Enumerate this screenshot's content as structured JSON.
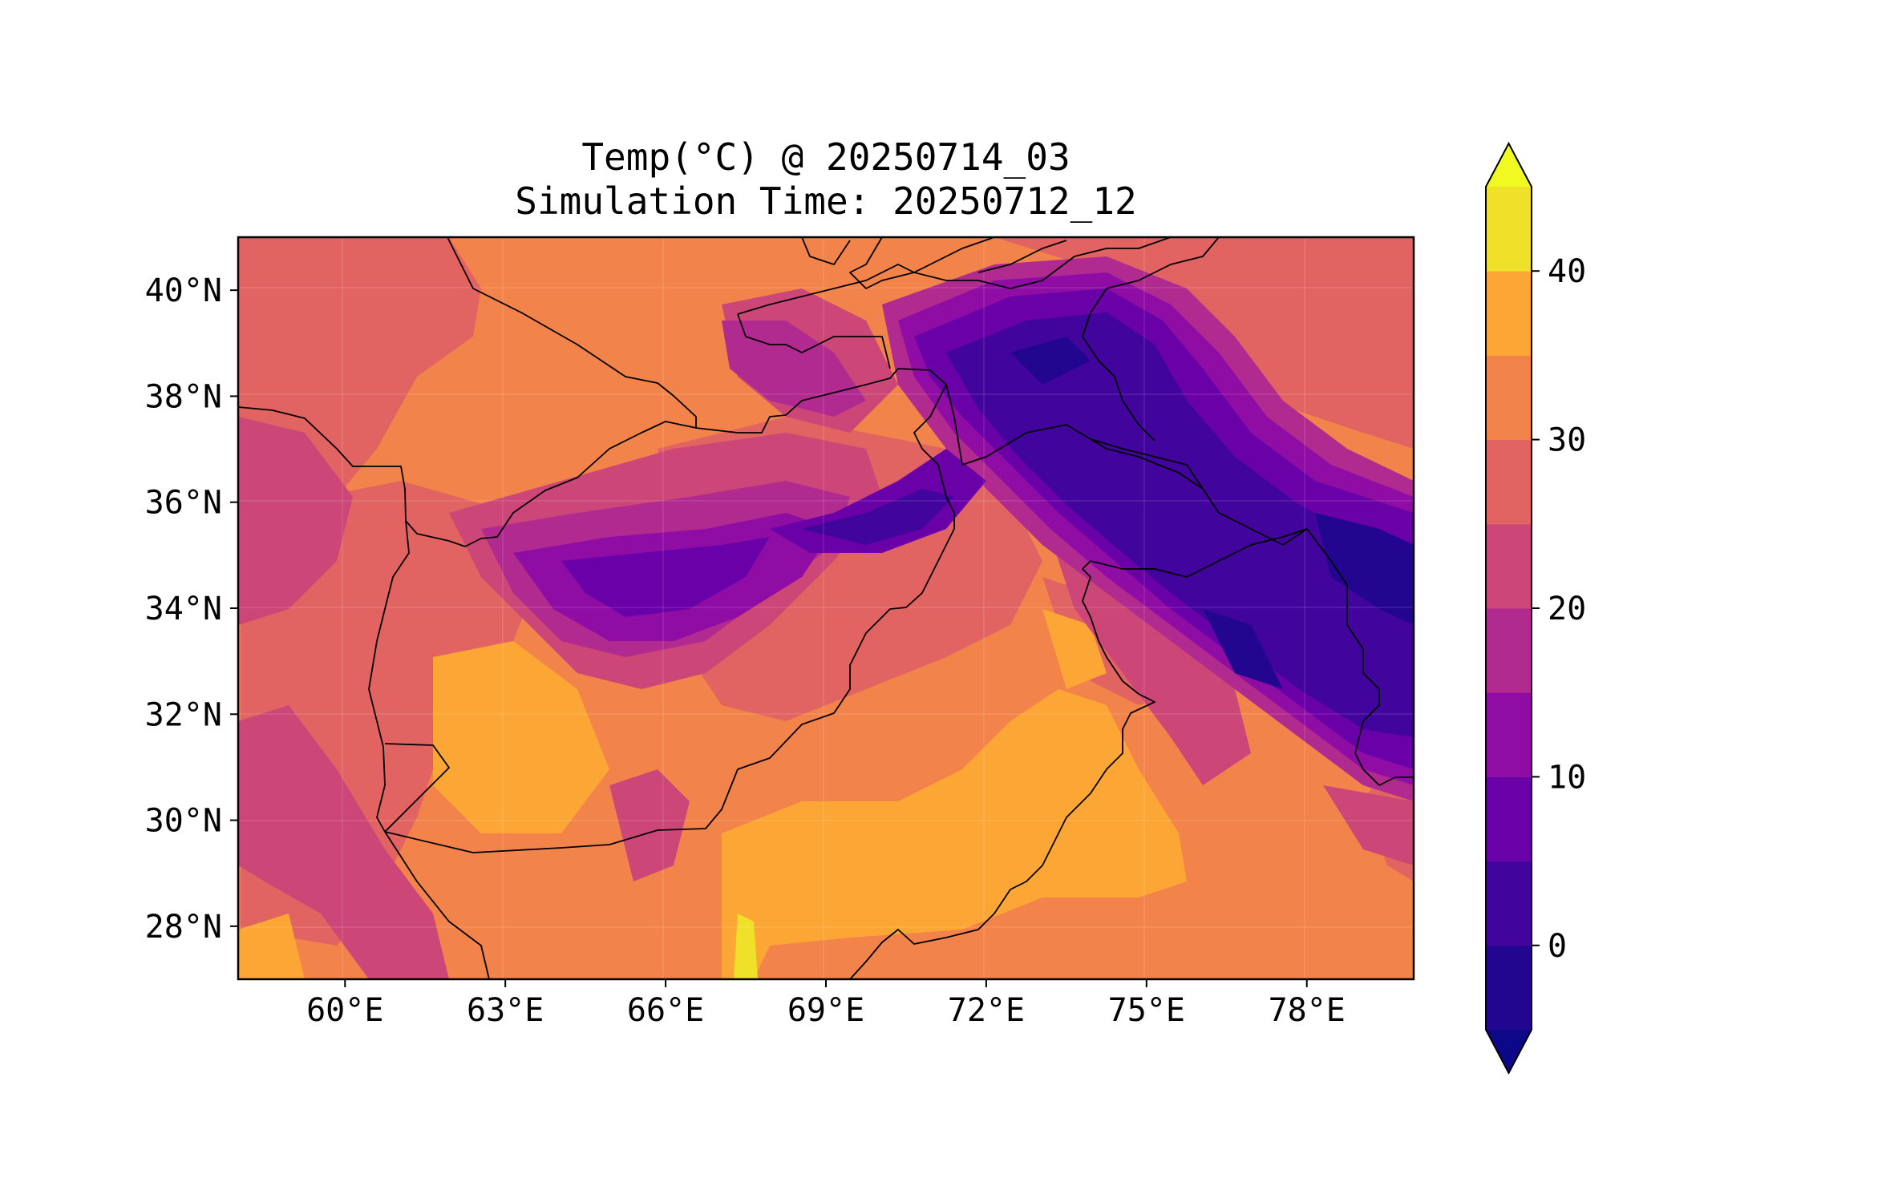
{
  "title": {
    "line1": "Temp(°C) @ 20250714_03",
    "line2": "Simulation Time: 20250712_12"
  },
  "map": {
    "lon_range": [
      58,
      80
    ],
    "lat_range": [
      27,
      41
    ],
    "lon_ticks": [
      {
        "value": 60,
        "label": "60°E"
      },
      {
        "value": 63,
        "label": "63°E"
      },
      {
        "value": 66,
        "label": "66°E"
      },
      {
        "value": 69,
        "label": "69°E"
      },
      {
        "value": 72,
        "label": "72°E"
      },
      {
        "value": 75,
        "label": "75°E"
      },
      {
        "value": 78,
        "label": "78°E"
      }
    ],
    "lat_ticks": [
      {
        "value": 28,
        "label": "28°N"
      },
      {
        "value": 30,
        "label": "30°N"
      },
      {
        "value": 32,
        "label": "32°N"
      },
      {
        "value": 34,
        "label": "34°N"
      },
      {
        "value": 36,
        "label": "36°N"
      },
      {
        "value": 38,
        "label": "38°N"
      },
      {
        "value": 40,
        "label": "40°N"
      }
    ],
    "colormap": "plasma",
    "field": "temperature",
    "unit": "°C"
  },
  "colorbar": {
    "levels": [
      -5,
      0,
      5,
      10,
      15,
      20,
      25,
      30,
      35,
      40,
      45
    ],
    "extend": "both",
    "under_color": "#0d0887",
    "over_color": "#f0f921",
    "bin_colors": [
      "#220690",
      "#41049d",
      "#6a00a8",
      "#8f0da4",
      "#b12a90",
      "#cc4778",
      "#e16462",
      "#f2844b",
      "#fca636",
      "#efe12a"
    ],
    "ticks": [
      {
        "value": 0,
        "label": "0"
      },
      {
        "value": 10,
        "label": "10"
      },
      {
        "value": 20,
        "label": "20"
      },
      {
        "value": 30,
        "label": "30"
      },
      {
        "value": 40,
        "label": "40"
      }
    ]
  }
}
